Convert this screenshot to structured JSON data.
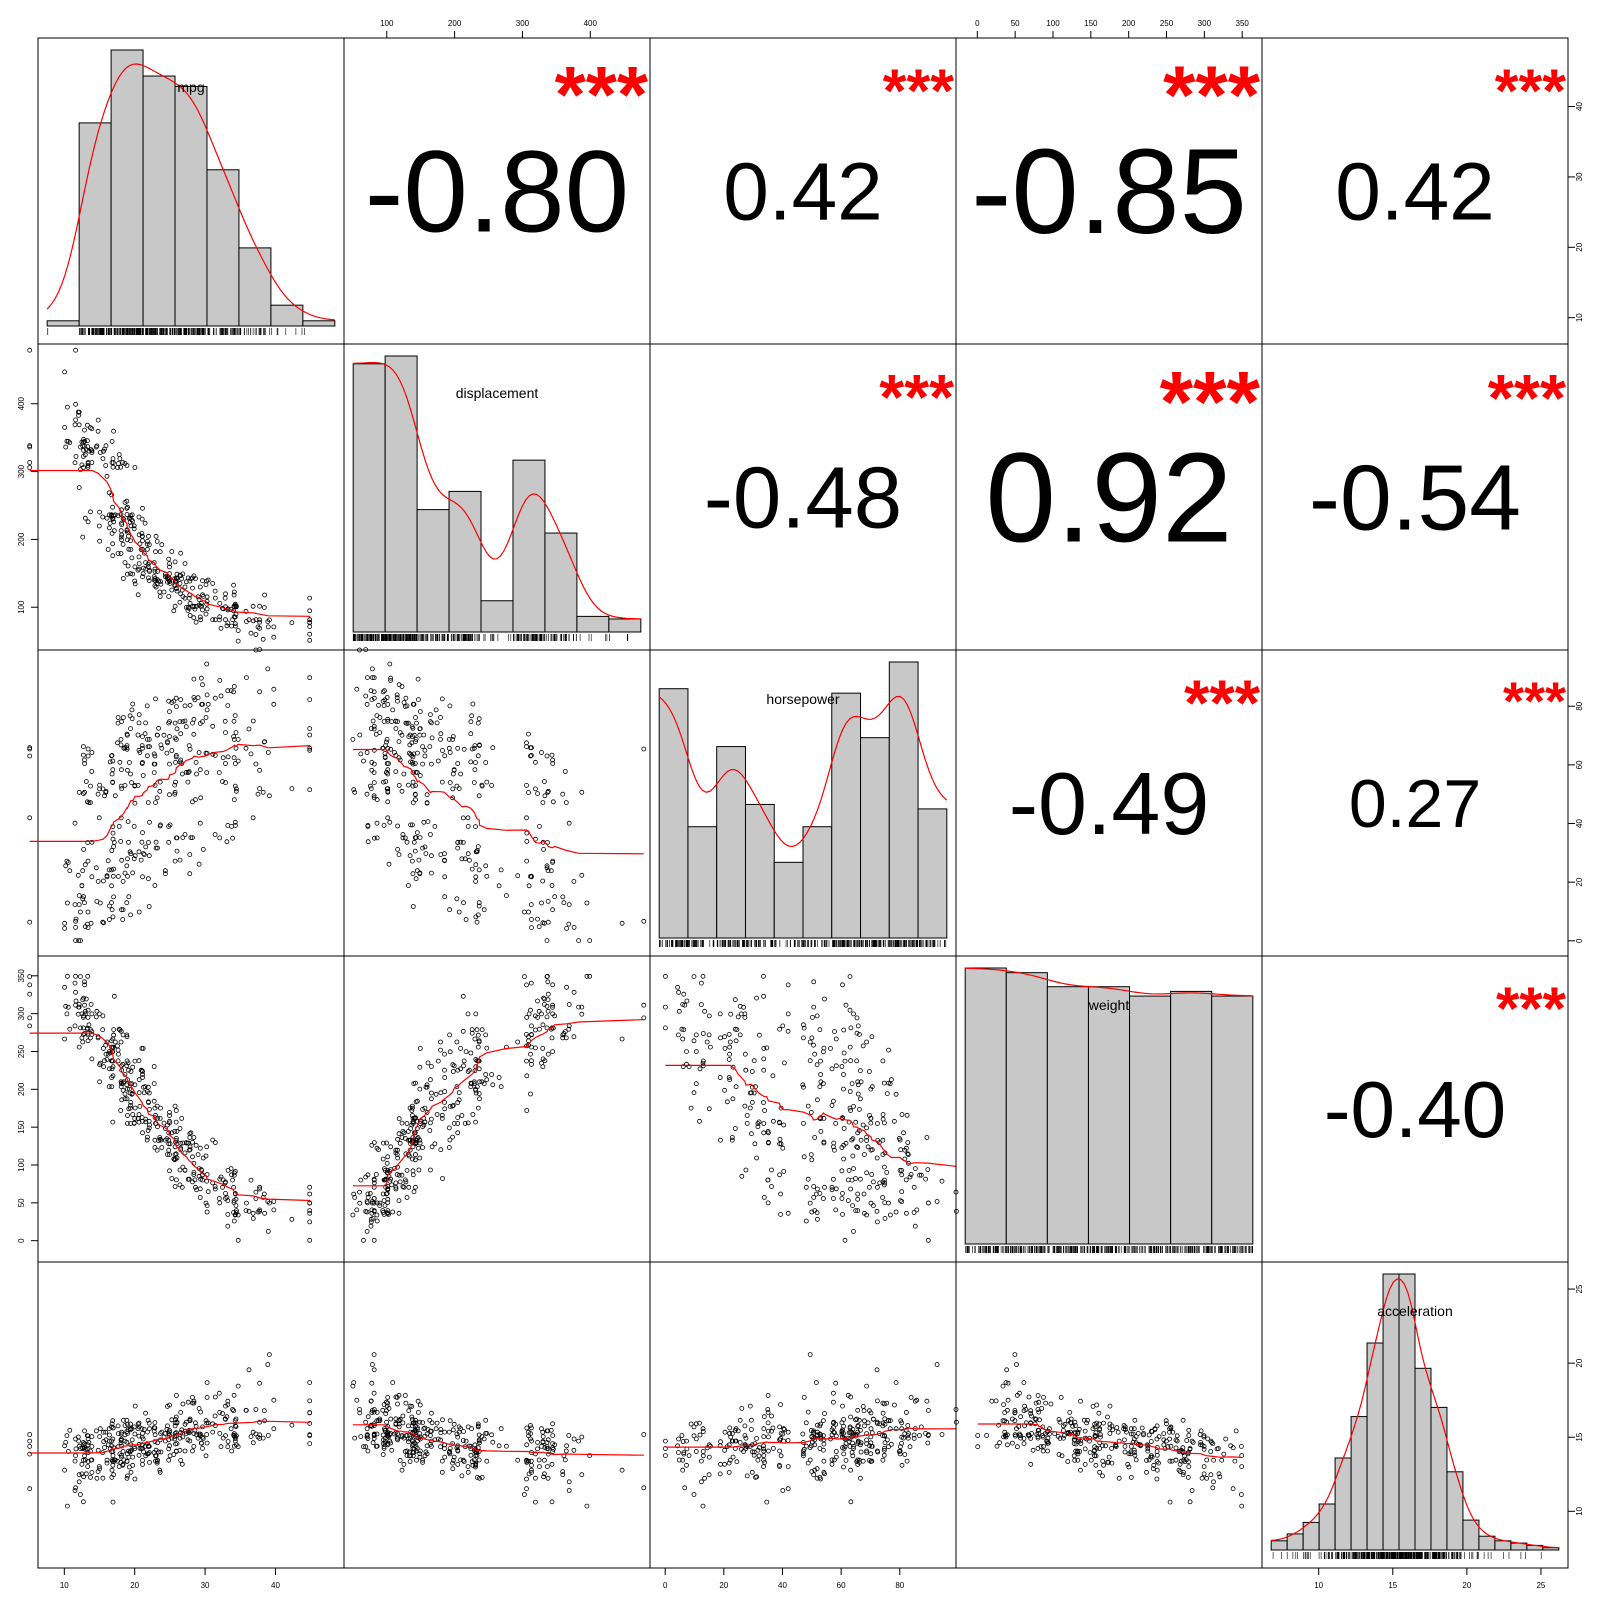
{
  "chart_data": {
    "type": "scatter-matrix",
    "variables": [
      "mpg",
      "displacement",
      "horsepower",
      "weight",
      "acceleration"
    ],
    "colors": {
      "fit": "#ff0000",
      "stars": "#ff0000",
      "bars": "#c8c8c8",
      "points": "#000000"
    },
    "histograms": [
      {
        "variable": "mpg",
        "breaks": [
          5,
          10,
          15,
          20,
          25,
          30,
          35,
          40,
          45,
          50
        ],
        "counts": [
          1,
          39,
          53,
          48,
          46,
          30,
          15,
          4,
          1
        ]
      },
      {
        "variable": "displacement",
        "breaks": [
          50,
          100,
          150,
          200,
          250,
          300,
          350,
          400,
          450,
          500
        ],
        "counts": [
          103,
          106,
          47,
          54,
          12,
          66,
          38,
          6,
          5
        ]
      },
      {
        "variable": "horsepower",
        "breaks": [
          0,
          10,
          20,
          30,
          40,
          50,
          60,
          70,
          80,
          90,
          100
        ],
        "counts": [
          56,
          25,
          43,
          30,
          17,
          25,
          55,
          45,
          62,
          29
        ]
      },
      {
        "variable": "weight",
        "breaks": [
          0,
          50,
          100,
          150,
          200,
          250,
          300,
          350
        ],
        "counts": [
          59,
          58,
          55,
          55,
          53,
          54,
          53
        ]
      },
      {
        "variable": "acceleration",
        "breaks": [
          7,
          8,
          9,
          10,
          11,
          12,
          13,
          14,
          15,
          16,
          17,
          18,
          19,
          20,
          21,
          22,
          23,
          24,
          25
        ],
        "counts": [
          4,
          7,
          12,
          20,
          40,
          58,
          90,
          120,
          120,
          79,
          62,
          34,
          13,
          6,
          4,
          3,
          2,
          1
        ]
      }
    ],
    "correlations": [
      {
        "row": "mpg",
        "col": "displacement",
        "value": "-0.80",
        "stars": "***"
      },
      {
        "row": "mpg",
        "col": "horsepower",
        "value": "0.42",
        "stars": "***"
      },
      {
        "row": "mpg",
        "col": "weight",
        "value": "-0.85",
        "stars": "***"
      },
      {
        "row": "mpg",
        "col": "acceleration",
        "value": "0.42",
        "stars": "***"
      },
      {
        "row": "displacement",
        "col": "horsepower",
        "value": "-0.48",
        "stars": "***"
      },
      {
        "row": "displacement",
        "col": "weight",
        "value": "0.92",
        "stars": "***"
      },
      {
        "row": "displacement",
        "col": "acceleration",
        "value": "-0.54",
        "stars": "***"
      },
      {
        "row": "horsepower",
        "col": "weight",
        "value": "-0.49",
        "stars": "***"
      },
      {
        "row": "horsepower",
        "col": "acceleration",
        "value": "0.27",
        "stars": "***"
      },
      {
        "row": "weight",
        "col": "acceleration",
        "value": "-0.40",
        "stars": "***"
      }
    ],
    "axis_ticks": {
      "mpg": [
        10,
        20,
        30,
        40
      ],
      "displacement": [
        100,
        200,
        300,
        400
      ],
      "horsepower": [
        0,
        20,
        40,
        60,
        80
      ],
      "weight": [
        0,
        50,
        100,
        150,
        200,
        250,
        300,
        350
      ],
      "acceleration": [
        10,
        15,
        20,
        25
      ]
    },
    "axis_ranges": {
      "mpg": [
        8,
        48
      ],
      "displacement": [
        55,
        470
      ],
      "horsepower": [
        -1,
        95
      ],
      "weight": [
        -12,
        360
      ],
      "acceleration": [
        7,
        26
      ]
    },
    "top_axes": [
      "displacement",
      "weight"
    ],
    "bottom_axes": [
      "mpg",
      "horsepower",
      "acceleration"
    ],
    "left_axes": [
      "displacement",
      "weight"
    ],
    "right_axes": [
      "mpg",
      "horsepower",
      "acceleration"
    ]
  }
}
